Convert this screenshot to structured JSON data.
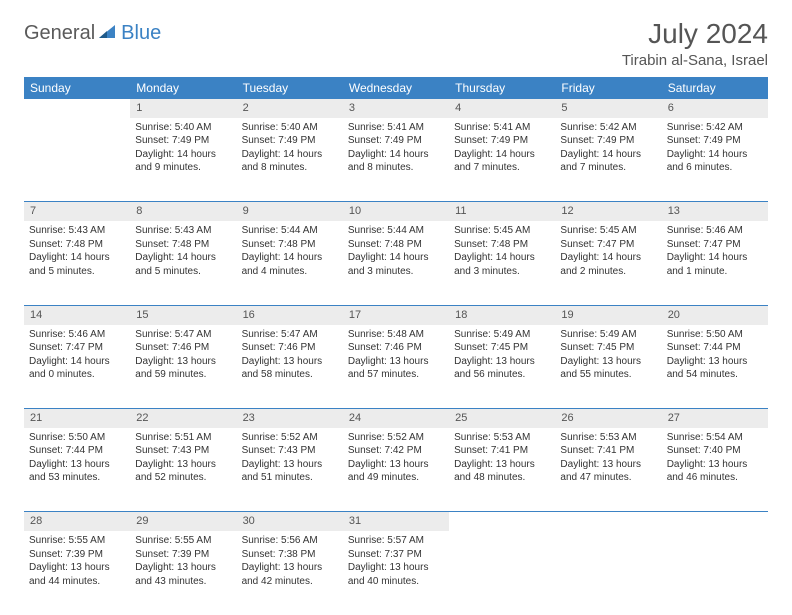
{
  "logo": {
    "general": "General",
    "blue": "Blue",
    "accent_color": "#3b82c4"
  },
  "header": {
    "title": "July 2024",
    "location": "Tirabin al-Sana, Israel"
  },
  "colors": {
    "header_bg": "#3b82c4",
    "header_fg": "#ffffff",
    "daynum_bg": "#ececec",
    "rule": "#3b82c4",
    "text": "#333333"
  },
  "day_labels": [
    "Sunday",
    "Monday",
    "Tuesday",
    "Wednesday",
    "Thursday",
    "Friday",
    "Saturday"
  ],
  "weeks": [
    {
      "nums": [
        "",
        "1",
        "2",
        "3",
        "4",
        "5",
        "6"
      ],
      "cells": [
        null,
        {
          "sunrise": "Sunrise: 5:40 AM",
          "sunset": "Sunset: 7:49 PM",
          "daylight": "Daylight: 14 hours and 9 minutes."
        },
        {
          "sunrise": "Sunrise: 5:40 AM",
          "sunset": "Sunset: 7:49 PM",
          "daylight": "Daylight: 14 hours and 8 minutes."
        },
        {
          "sunrise": "Sunrise: 5:41 AM",
          "sunset": "Sunset: 7:49 PM",
          "daylight": "Daylight: 14 hours and 8 minutes."
        },
        {
          "sunrise": "Sunrise: 5:41 AM",
          "sunset": "Sunset: 7:49 PM",
          "daylight": "Daylight: 14 hours and 7 minutes."
        },
        {
          "sunrise": "Sunrise: 5:42 AM",
          "sunset": "Sunset: 7:49 PM",
          "daylight": "Daylight: 14 hours and 7 minutes."
        },
        {
          "sunrise": "Sunrise: 5:42 AM",
          "sunset": "Sunset: 7:49 PM",
          "daylight": "Daylight: 14 hours and 6 minutes."
        }
      ]
    },
    {
      "nums": [
        "7",
        "8",
        "9",
        "10",
        "11",
        "12",
        "13"
      ],
      "cells": [
        {
          "sunrise": "Sunrise: 5:43 AM",
          "sunset": "Sunset: 7:48 PM",
          "daylight": "Daylight: 14 hours and 5 minutes."
        },
        {
          "sunrise": "Sunrise: 5:43 AM",
          "sunset": "Sunset: 7:48 PM",
          "daylight": "Daylight: 14 hours and 5 minutes."
        },
        {
          "sunrise": "Sunrise: 5:44 AM",
          "sunset": "Sunset: 7:48 PM",
          "daylight": "Daylight: 14 hours and 4 minutes."
        },
        {
          "sunrise": "Sunrise: 5:44 AM",
          "sunset": "Sunset: 7:48 PM",
          "daylight": "Daylight: 14 hours and 3 minutes."
        },
        {
          "sunrise": "Sunrise: 5:45 AM",
          "sunset": "Sunset: 7:48 PM",
          "daylight": "Daylight: 14 hours and 3 minutes."
        },
        {
          "sunrise": "Sunrise: 5:45 AM",
          "sunset": "Sunset: 7:47 PM",
          "daylight": "Daylight: 14 hours and 2 minutes."
        },
        {
          "sunrise": "Sunrise: 5:46 AM",
          "sunset": "Sunset: 7:47 PM",
          "daylight": "Daylight: 14 hours and 1 minute."
        }
      ]
    },
    {
      "nums": [
        "14",
        "15",
        "16",
        "17",
        "18",
        "19",
        "20"
      ],
      "cells": [
        {
          "sunrise": "Sunrise: 5:46 AM",
          "sunset": "Sunset: 7:47 PM",
          "daylight": "Daylight: 14 hours and 0 minutes."
        },
        {
          "sunrise": "Sunrise: 5:47 AM",
          "sunset": "Sunset: 7:46 PM",
          "daylight": "Daylight: 13 hours and 59 minutes."
        },
        {
          "sunrise": "Sunrise: 5:47 AM",
          "sunset": "Sunset: 7:46 PM",
          "daylight": "Daylight: 13 hours and 58 minutes."
        },
        {
          "sunrise": "Sunrise: 5:48 AM",
          "sunset": "Sunset: 7:46 PM",
          "daylight": "Daylight: 13 hours and 57 minutes."
        },
        {
          "sunrise": "Sunrise: 5:49 AM",
          "sunset": "Sunset: 7:45 PM",
          "daylight": "Daylight: 13 hours and 56 minutes."
        },
        {
          "sunrise": "Sunrise: 5:49 AM",
          "sunset": "Sunset: 7:45 PM",
          "daylight": "Daylight: 13 hours and 55 minutes."
        },
        {
          "sunrise": "Sunrise: 5:50 AM",
          "sunset": "Sunset: 7:44 PM",
          "daylight": "Daylight: 13 hours and 54 minutes."
        }
      ]
    },
    {
      "nums": [
        "21",
        "22",
        "23",
        "24",
        "25",
        "26",
        "27"
      ],
      "cells": [
        {
          "sunrise": "Sunrise: 5:50 AM",
          "sunset": "Sunset: 7:44 PM",
          "daylight": "Daylight: 13 hours and 53 minutes."
        },
        {
          "sunrise": "Sunrise: 5:51 AM",
          "sunset": "Sunset: 7:43 PM",
          "daylight": "Daylight: 13 hours and 52 minutes."
        },
        {
          "sunrise": "Sunrise: 5:52 AM",
          "sunset": "Sunset: 7:43 PM",
          "daylight": "Daylight: 13 hours and 51 minutes."
        },
        {
          "sunrise": "Sunrise: 5:52 AM",
          "sunset": "Sunset: 7:42 PM",
          "daylight": "Daylight: 13 hours and 49 minutes."
        },
        {
          "sunrise": "Sunrise: 5:53 AM",
          "sunset": "Sunset: 7:41 PM",
          "daylight": "Daylight: 13 hours and 48 minutes."
        },
        {
          "sunrise": "Sunrise: 5:53 AM",
          "sunset": "Sunset: 7:41 PM",
          "daylight": "Daylight: 13 hours and 47 minutes."
        },
        {
          "sunrise": "Sunrise: 5:54 AM",
          "sunset": "Sunset: 7:40 PM",
          "daylight": "Daylight: 13 hours and 46 minutes."
        }
      ]
    },
    {
      "nums": [
        "28",
        "29",
        "30",
        "31",
        "",
        "",
        ""
      ],
      "cells": [
        {
          "sunrise": "Sunrise: 5:55 AM",
          "sunset": "Sunset: 7:39 PM",
          "daylight": "Daylight: 13 hours and 44 minutes."
        },
        {
          "sunrise": "Sunrise: 5:55 AM",
          "sunset": "Sunset: 7:39 PM",
          "daylight": "Daylight: 13 hours and 43 minutes."
        },
        {
          "sunrise": "Sunrise: 5:56 AM",
          "sunset": "Sunset: 7:38 PM",
          "daylight": "Daylight: 13 hours and 42 minutes."
        },
        {
          "sunrise": "Sunrise: 5:57 AM",
          "sunset": "Sunset: 7:37 PM",
          "daylight": "Daylight: 13 hours and 40 minutes."
        },
        null,
        null,
        null
      ]
    }
  ]
}
